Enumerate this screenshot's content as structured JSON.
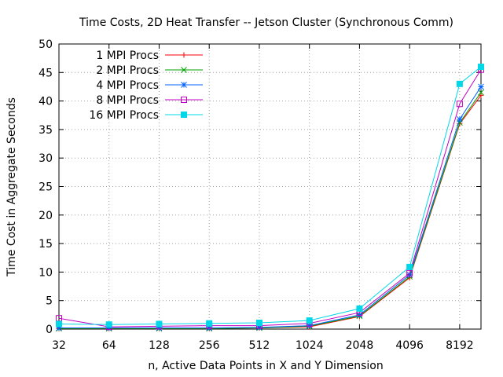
{
  "chart_data": {
    "type": "line",
    "title": "Time Costs, 2D Heat Transfer -- Jetson Cluster (Synchronous Comm)",
    "xlabel": "n, Active Data Points in X and Y Dimension",
    "ylabel": "Time Cost in Aggregate Seconds",
    "x_scale": "log2",
    "categories": [
      "32",
      "64",
      "128",
      "256",
      "512",
      "1024",
      "2048",
      "4096",
      "8192"
    ],
    "x": [
      32,
      64,
      128,
      256,
      512,
      1024,
      2048,
      4096,
      8192,
      11000
    ],
    "xlim": [
      32,
      11000
    ],
    "ylim": [
      0,
      50
    ],
    "yticks": [
      0,
      5,
      10,
      15,
      20,
      25,
      30,
      35,
      40,
      45,
      50
    ],
    "grid": true,
    "legend_position": "top-left",
    "series": [
      {
        "name": "1 MPI Procs",
        "color": "#ff0000",
        "marker": "plus",
        "values": [
          0.1,
          0.1,
          0.1,
          0.1,
          0.2,
          0.4,
          2.2,
          9.0,
          36.0,
          41.0
        ]
      },
      {
        "name": "2 MPI Procs",
        "color": "#00a000",
        "marker": "cross",
        "values": [
          0.1,
          0.1,
          0.1,
          0.1,
          0.2,
          0.5,
          2.3,
          9.2,
          36.2,
          41.5
        ]
      },
      {
        "name": "4 MPI Procs",
        "color": "#0060ff",
        "marker": "star",
        "values": [
          0.2,
          0.2,
          0.2,
          0.2,
          0.3,
          0.6,
          2.5,
          9.5,
          36.8,
          42.5
        ]
      },
      {
        "name": "8 MPI Procs",
        "color": "#c000c0",
        "marker": "box",
        "values": [
          1.9,
          0.4,
          0.5,
          0.6,
          0.6,
          1.0,
          2.9,
          9.8,
          39.5,
          45.5
        ]
      },
      {
        "name": "16 MPI Procs",
        "color": "#00d8e8",
        "marker": "filled-box",
        "values": [
          0.9,
          0.8,
          0.9,
          1.0,
          1.1,
          1.5,
          3.6,
          10.9,
          43.0,
          46.0
        ]
      }
    ]
  }
}
